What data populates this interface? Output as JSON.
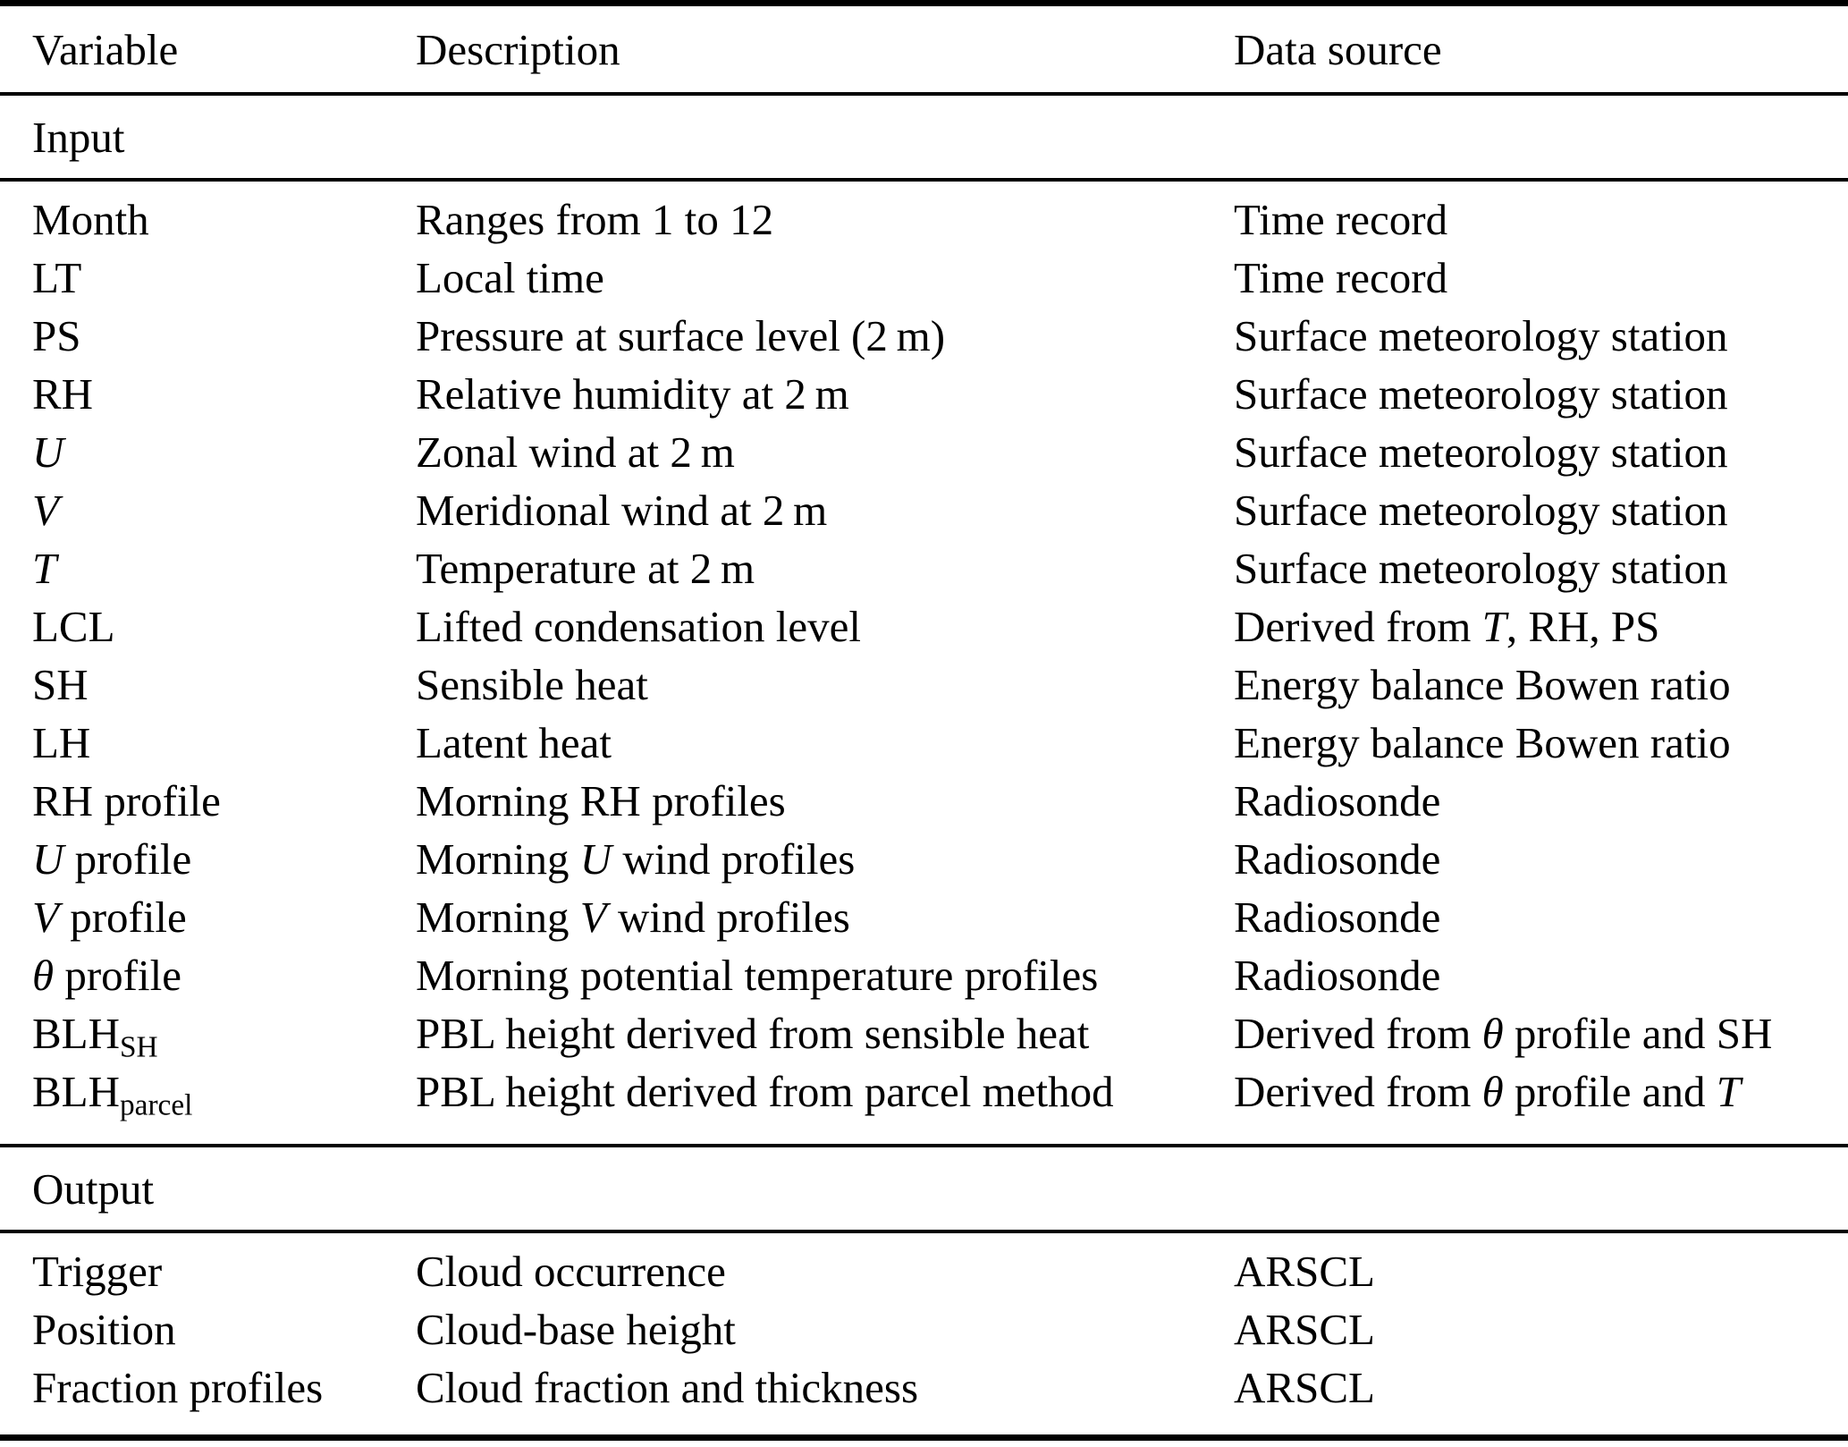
{
  "table": {
    "headers": [
      {
        "label": "Variable"
      },
      {
        "label": "Description"
      },
      {
        "label": "Data source"
      }
    ],
    "sections": [
      {
        "label": "Input",
        "rows": [
          {
            "variable": [
              {
                "t": "Month"
              }
            ],
            "description": [
              {
                "t": "Ranges from 1 to 12"
              }
            ],
            "source": [
              {
                "t": "Time record"
              }
            ]
          },
          {
            "variable": [
              {
                "t": "LT"
              }
            ],
            "description": [
              {
                "t": "Local time"
              }
            ],
            "source": [
              {
                "t": "Time record"
              }
            ]
          },
          {
            "variable": [
              {
                "t": "PS"
              }
            ],
            "description": [
              {
                "t": "Pressure at surface level (2 m)"
              }
            ],
            "source": [
              {
                "t": "Surface meteorology station"
              }
            ]
          },
          {
            "variable": [
              {
                "t": "RH"
              }
            ],
            "description": [
              {
                "t": "Relative humidity at 2 m"
              }
            ],
            "source": [
              {
                "t": "Surface meteorology station"
              }
            ]
          },
          {
            "variable": [
              {
                "t": "U",
                "i": true
              }
            ],
            "description": [
              {
                "t": "Zonal wind at 2 m"
              }
            ],
            "source": [
              {
                "t": "Surface meteorology station"
              }
            ]
          },
          {
            "variable": [
              {
                "t": "V",
                "i": true
              }
            ],
            "description": [
              {
                "t": "Meridional wind at 2 m"
              }
            ],
            "source": [
              {
                "t": "Surface meteorology station"
              }
            ]
          },
          {
            "variable": [
              {
                "t": "T",
                "i": true
              }
            ],
            "description": [
              {
                "t": "Temperature at 2 m"
              }
            ],
            "source": [
              {
                "t": "Surface meteorology station"
              }
            ]
          },
          {
            "variable": [
              {
                "t": "LCL"
              }
            ],
            "description": [
              {
                "t": "Lifted condensation level"
              }
            ],
            "source": [
              {
                "t": "Derived from "
              },
              {
                "t": "T",
                "i": true
              },
              {
                "t": ", RH, PS"
              }
            ]
          },
          {
            "variable": [
              {
                "t": "SH"
              }
            ],
            "description": [
              {
                "t": "Sensible heat"
              }
            ],
            "source": [
              {
                "t": "Energy balance Bowen ratio"
              }
            ]
          },
          {
            "variable": [
              {
                "t": "LH"
              }
            ],
            "description": [
              {
                "t": "Latent heat"
              }
            ],
            "source": [
              {
                "t": "Energy balance Bowen ratio"
              }
            ]
          },
          {
            "variable": [
              {
                "t": "RH profile"
              }
            ],
            "description": [
              {
                "t": "Morning RH profiles"
              }
            ],
            "source": [
              {
                "t": "Radiosonde"
              }
            ]
          },
          {
            "variable": [
              {
                "t": "U",
                "i": true
              },
              {
                "t": " profile"
              }
            ],
            "description": [
              {
                "t": "Morning "
              },
              {
                "t": "U",
                "i": true
              },
              {
                "t": " wind profiles"
              }
            ],
            "source": [
              {
                "t": "Radiosonde"
              }
            ]
          },
          {
            "variable": [
              {
                "t": "V",
                "i": true
              },
              {
                "t": " profile"
              }
            ],
            "description": [
              {
                "t": "Morning "
              },
              {
                "t": "V",
                "i": true
              },
              {
                "t": " wind profiles"
              }
            ],
            "source": [
              {
                "t": "Radiosonde"
              }
            ]
          },
          {
            "variable": [
              {
                "t": "θ",
                "i": true
              },
              {
                "t": " profile"
              }
            ],
            "description": [
              {
                "t": "Morning potential temperature profiles"
              }
            ],
            "source": [
              {
                "t": "Radiosonde"
              }
            ]
          },
          {
            "variable": [
              {
                "t": "BLH"
              },
              {
                "t": "SH",
                "sub": true
              }
            ],
            "description": [
              {
                "t": "PBL height derived from sensible heat"
              }
            ],
            "source": [
              {
                "t": "Derived from "
              },
              {
                "t": "θ",
                "i": true
              },
              {
                "t": " profile and SH"
              }
            ]
          },
          {
            "variable": [
              {
                "t": "BLH"
              },
              {
                "t": "parcel",
                "sub": true
              }
            ],
            "description": [
              {
                "t": "PBL height derived from parcel method"
              }
            ],
            "source": [
              {
                "t": "Derived from "
              },
              {
                "t": "θ",
                "i": true
              },
              {
                "t": " profile and "
              },
              {
                "t": "T",
                "i": true
              }
            ]
          }
        ]
      },
      {
        "label": "Output",
        "rows": [
          {
            "variable": [
              {
                "t": "Trigger"
              }
            ],
            "description": [
              {
                "t": "Cloud occurrence"
              }
            ],
            "source": [
              {
                "t": "ARSCL"
              }
            ]
          },
          {
            "variable": [
              {
                "t": "Position"
              }
            ],
            "description": [
              {
                "t": "Cloud-base height"
              }
            ],
            "source": [
              {
                "t": "ARSCL"
              }
            ]
          },
          {
            "variable": [
              {
                "t": "Fraction profiles"
              }
            ],
            "description": [
              {
                "t": "Cloud fraction and thickness"
              }
            ],
            "source": [
              {
                "t": "ARSCL"
              }
            ]
          }
        ]
      }
    ]
  }
}
